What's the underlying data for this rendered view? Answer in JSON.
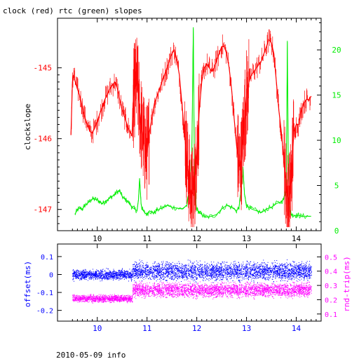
{
  "colors": {
    "clock": "#ff0000",
    "rtc": "#00ee00",
    "offset": "#0000ff",
    "rndtrip": "#ff00ff",
    "frame": "#000000"
  },
  "footer": "2010-05-09 info",
  "chart_data": [
    {
      "type": "line",
      "title": "clock (red) rtc (green) slopes",
      "xlabel": "",
      "ylabel": "clockslope",
      "y2label": "",
      "x_ticks": [
        "10",
        "11",
        "12",
        "13",
        "14"
      ],
      "xlim": [
        9.2,
        14.5
      ],
      "ylim": [
        -147.3,
        -144.3
      ],
      "y2lim": [
        0,
        23.5
      ],
      "y_ticks": [
        "-145",
        "-146",
        "-147"
      ],
      "y2_ticks": [
        "0",
        "5",
        "10",
        "15",
        "20"
      ],
      "series": [
        {
          "name": "clock",
          "axis": "left",
          "x": [
            9.47,
            9.5,
            9.52,
            9.55,
            9.6,
            9.65,
            9.7,
            9.75,
            9.8,
            9.85,
            9.9,
            9.95,
            10.0,
            10.05,
            10.1,
            10.15,
            10.2,
            10.25,
            10.3,
            10.35,
            10.4,
            10.45,
            10.5,
            10.55,
            10.6,
            10.65,
            10.7,
            10.72,
            10.75,
            10.8,
            10.85,
            10.9,
            10.95,
            11.0,
            11.05,
            11.1,
            11.15,
            11.2,
            11.25,
            11.3,
            11.35,
            11.4,
            11.45,
            11.5,
            11.55,
            11.6,
            11.65,
            11.7,
            11.75,
            11.8,
            11.85,
            11.9,
            11.95,
            12.0,
            12.05,
            12.1,
            12.15,
            12.2,
            12.25,
            12.3,
            12.35,
            12.4,
            12.45,
            12.5,
            12.55,
            12.6,
            12.65,
            12.7,
            12.75,
            12.8,
            12.85,
            12.9,
            12.95,
            13.0,
            13.05,
            13.1,
            13.15,
            13.2,
            13.25,
            13.3,
            13.35,
            13.4,
            13.45,
            13.5,
            13.55,
            13.6,
            13.65,
            13.7,
            13.75,
            13.8,
            13.85,
            13.9,
            13.95,
            14.0,
            14.05,
            14.1,
            14.15,
            14.2,
            14.25,
            14.3
          ],
          "values": [
            -145.95,
            -145.2,
            -145.1,
            -145.18,
            -145.3,
            -145.4,
            -145.55,
            -145.7,
            -145.8,
            -145.9,
            -145.92,
            -145.85,
            -145.75,
            -145.65,
            -145.55,
            -145.45,
            -145.38,
            -145.3,
            -145.25,
            -145.2,
            -145.28,
            -145.45,
            -145.6,
            -145.7,
            -145.8,
            -145.9,
            -145.95,
            -145.5,
            -145.3,
            -145.2,
            -145.6,
            -145.9,
            -146.1,
            -146.2,
            -145.9,
            -145.7,
            -145.5,
            -145.4,
            -145.3,
            -145.2,
            -145.1,
            -145.0,
            -144.9,
            -144.8,
            -144.75,
            -144.9,
            -145.1,
            -145.5,
            -145.9,
            -146.3,
            -146.6,
            -146.8,
            -146.7,
            -146.2,
            -145.6,
            -145.2,
            -145.0,
            -144.95,
            -145.0,
            -145.05,
            -145.0,
            -144.9,
            -144.8,
            -144.7,
            -144.7,
            -144.8,
            -145.0,
            -145.3,
            -145.7,
            -146.1,
            -146.4,
            -146.3,
            -145.8,
            -145.4,
            -145.2,
            -145.1,
            -145.05,
            -145.0,
            -144.95,
            -144.9,
            -144.8,
            -144.7,
            -144.6,
            -144.65,
            -144.8,
            -145.2,
            -145.6,
            -145.9,
            -146.3,
            -146.7,
            -146.9,
            -146.6,
            -145.9,
            -145.8,
            -145.8,
            -145.6,
            -145.5,
            -145.45,
            -145.45,
            -145.4
          ]
        },
        {
          "name": "rtc",
          "axis": "right",
          "x": [
            9.55,
            9.6,
            9.65,
            9.7,
            9.75,
            9.8,
            9.85,
            9.9,
            9.95,
            10.0,
            10.05,
            10.1,
            10.15,
            10.2,
            10.25,
            10.3,
            10.35,
            10.4,
            10.45,
            10.5,
            10.55,
            10.6,
            10.65,
            10.7,
            10.75,
            10.8,
            10.83,
            10.85,
            10.88,
            10.9,
            10.95,
            11.0,
            11.05,
            11.1,
            11.15,
            11.2,
            11.3,
            11.4,
            11.5,
            11.6,
            11.7,
            11.8,
            11.85,
            11.9,
            11.93,
            11.95,
            11.98,
            12.0,
            12.05,
            12.1,
            12.15,
            12.2,
            12.3,
            12.4,
            12.5,
            12.6,
            12.7,
            12.8,
            12.85,
            12.9,
            12.93,
            12.96,
            13.0,
            13.05,
            13.1,
            13.2,
            13.3,
            13.4,
            13.5,
            13.6,
            13.7,
            13.75,
            13.8,
            13.82,
            13.84,
            13.86,
            13.88,
            13.9,
            13.95,
            14.0,
            14.05,
            14.1,
            14.2,
            14.3
          ],
          "values": [
            1.8,
            2.3,
            2.5,
            2.4,
            2.8,
            3.0,
            3.3,
            3.5,
            3.5,
            3.4,
            3.2,
            3.0,
            3.2,
            3.4,
            3.6,
            3.8,
            4.0,
            4.3,
            4.4,
            3.8,
            3.5,
            3.3,
            3.0,
            2.6,
            2.4,
            2.2,
            3.5,
            5.8,
            3.0,
            2.4,
            2.0,
            1.8,
            2.2,
            2.0,
            2.0,
            2.3,
            2.5,
            2.8,
            2.6,
            2.5,
            2.4,
            2.8,
            4.5,
            8.0,
            22.5,
            8.0,
            3.0,
            2.4,
            2.0,
            1.8,
            1.6,
            1.5,
            1.6,
            1.8,
            2.4,
            2.8,
            2.6,
            2.2,
            2.6,
            5.0,
            6.8,
            4.0,
            2.8,
            2.6,
            2.4,
            2.2,
            2.0,
            2.4,
            2.6,
            3.0,
            3.2,
            3.5,
            5.0,
            21.0,
            7.5,
            3.0,
            2.2,
            1.8,
            1.7,
            1.7,
            1.7,
            1.6,
            1.6,
            1.6
          ]
        }
      ]
    },
    {
      "type": "scatter",
      "xlabel": "",
      "ylabel": "offset(ms)",
      "y2label": "rnd-trip(ms)",
      "x_ticks": [
        "10",
        "11",
        "12",
        "13",
        "14"
      ],
      "xlim": [
        9.2,
        14.5
      ],
      "ylim": [
        -0.26,
        0.17
      ],
      "y2lim": [
        0.05,
        0.59
      ],
      "y_ticks": [
        "0.1",
        "0",
        "-0.1",
        "-0.2"
      ],
      "y2_ticks": [
        "0.5",
        "0.4",
        "0.3",
        "0.2",
        "0.1"
      ],
      "series": [
        {
          "name": "offset",
          "axis": "left",
          "segments": [
            {
              "x": [
                9.5,
                10.7
              ],
              "center": 0.0,
              "spread": 0.04
            },
            {
              "x": [
                10.7,
                14.3
              ],
              "center": 0.02,
              "spread": 0.07
            }
          ]
        },
        {
          "name": "rnd-trip",
          "axis": "right",
          "segments": [
            {
              "x": [
                9.5,
                10.7
              ],
              "center": 0.21,
              "spread": 0.035
            },
            {
              "x": [
                10.7,
                14.3
              ],
              "center": 0.27,
              "spread": 0.07
            }
          ]
        }
      ]
    }
  ]
}
